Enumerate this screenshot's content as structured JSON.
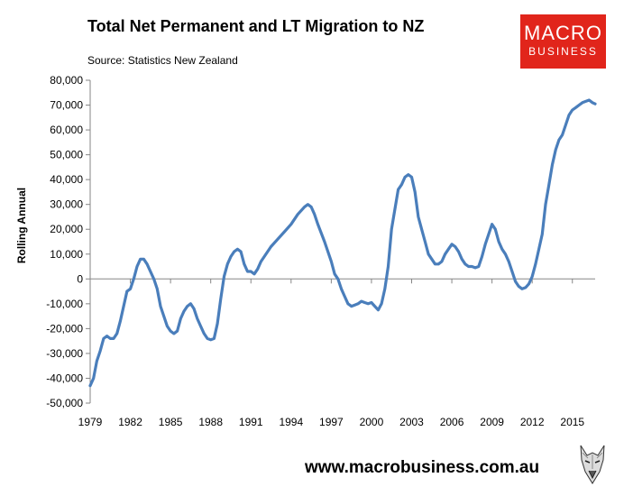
{
  "title": "Total Net Permanent and LT Migration to NZ",
  "source": "Source: Statistics New Zealand",
  "logo": {
    "line1": "MACRO",
    "line2": "BUSINESS",
    "color": "#e1251b"
  },
  "website": "www.macrobusiness.com.au",
  "wolf_icon": "wolf-logo-icon",
  "chart_data": {
    "type": "line",
    "title": "Total Net Permanent and LT Migration to NZ",
    "xlabel": "",
    "ylabel": "Rolling Annual",
    "xlim": [
      1979,
      2016.7
    ],
    "ylim": [
      -50000,
      80000
    ],
    "x_ticks": [
      1979,
      1982,
      1985,
      1988,
      1991,
      1994,
      1997,
      2000,
      2003,
      2006,
      2009,
      2012,
      2015
    ],
    "x_tick_labels": [
      "1979",
      "1982",
      "1985",
      "1988",
      "1991",
      "1994",
      "1997",
      "2000",
      "2003",
      "2006",
      "2009",
      "2012",
      "2015"
    ],
    "y_ticks": [
      -50000,
      -40000,
      -30000,
      -20000,
      -10000,
      0,
      10000,
      20000,
      30000,
      40000,
      50000,
      60000,
      70000,
      80000
    ],
    "y_tick_labels": [
      "-50,000",
      "-40,000",
      "-30,000",
      "-20,000",
      "-10,000",
      "0",
      "10,000",
      "20,000",
      "30,000",
      "40,000",
      "50,000",
      "60,000",
      "70,000",
      "80,000"
    ],
    "grid": false,
    "series": [
      {
        "name": "Rolling Annual",
        "color": "#4a7ebb",
        "x": [
          1979.0,
          1979.25,
          1979.5,
          1979.75,
          1980.0,
          1980.25,
          1980.5,
          1980.75,
          1981.0,
          1981.25,
          1981.5,
          1981.75,
          1982.0,
          1982.25,
          1982.5,
          1982.75,
          1983.0,
          1983.25,
          1983.5,
          1983.75,
          1984.0,
          1984.25,
          1984.5,
          1984.75,
          1985.0,
          1985.25,
          1985.5,
          1985.75,
          1986.0,
          1986.25,
          1986.5,
          1986.75,
          1987.0,
          1987.25,
          1987.5,
          1987.75,
          1988.0,
          1988.25,
          1988.5,
          1988.75,
          1989.0,
          1989.25,
          1989.5,
          1989.75,
          1990.0,
          1990.25,
          1990.5,
          1990.75,
          1991.0,
          1991.25,
          1991.5,
          1991.75,
          1992.0,
          1992.5,
          1993.0,
          1993.5,
          1994.0,
          1994.5,
          1995.0,
          1995.25,
          1995.5,
          1995.75,
          1996.0,
          1996.5,
          1997.0,
          1997.25,
          1997.5,
          1997.75,
          1998.0,
          1998.25,
          1998.5,
          1998.75,
          1999.0,
          1999.25,
          1999.5,
          1999.75,
          2000.0,
          2000.25,
          2000.5,
          2000.75,
          2001.0,
          2001.25,
          2001.5,
          2001.75,
          2002.0,
          2002.25,
          2002.5,
          2002.75,
          2003.0,
          2003.25,
          2003.5,
          2003.75,
          2004.0,
          2004.25,
          2004.5,
          2004.75,
          2005.0,
          2005.25,
          2005.5,
          2005.75,
          2006.0,
          2006.25,
          2006.5,
          2006.75,
          2007.0,
          2007.25,
          2007.5,
          2007.75,
          2008.0,
          2008.25,
          2008.5,
          2008.75,
          2009.0,
          2009.25,
          2009.5,
          2009.75,
          2010.0,
          2010.25,
          2010.5,
          2010.75,
          2011.0,
          2011.25,
          2011.5,
          2011.75,
          2012.0,
          2012.25,
          2012.5,
          2012.75,
          2013.0,
          2013.25,
          2013.5,
          2013.75,
          2014.0,
          2014.25,
          2014.5,
          2014.75,
          2015.0,
          2015.25,
          2015.5,
          2015.75,
          2016.0,
          2016.25,
          2016.5,
          2016.7
        ],
        "values": [
          -43000,
          -40000,
          -33000,
          -29000,
          -24000,
          -23000,
          -24000,
          -24000,
          -22000,
          -17000,
          -11000,
          -5000,
          -4000,
          0,
          5000,
          8000,
          8000,
          6000,
          3000,
          0,
          -4000,
          -11000,
          -15000,
          -19000,
          -21000,
          -22000,
          -21000,
          -16000,
          -13000,
          -11000,
          -10000,
          -12000,
          -16000,
          -19000,
          -22000,
          -24000,
          -24500,
          -24000,
          -18000,
          -8000,
          1000,
          6000,
          9000,
          11000,
          12000,
          11000,
          6000,
          3000,
          3000,
          2000,
          4000,
          7000,
          9000,
          13000,
          16000,
          19000,
          22000,
          26000,
          29000,
          30000,
          29000,
          26000,
          22000,
          15000,
          7000,
          2000,
          0,
          -4000,
          -7000,
          -10000,
          -11000,
          -10500,
          -10000,
          -9000,
          -9500,
          -10000,
          -9500,
          -11000,
          -12500,
          -10000,
          -4000,
          5000,
          20000,
          28000,
          36000,
          38000,
          41000,
          42000,
          41000,
          35000,
          25000,
          20000,
          15000,
          10000,
          8000,
          6000,
          6000,
          7000,
          10000,
          12000,
          14000,
          13000,
          11000,
          8000,
          6000,
          5000,
          5000,
          4500,
          5000,
          9000,
          14000,
          18000,
          22000,
          20000,
          15000,
          12000,
          10000,
          7000,
          3000,
          -1000,
          -3000,
          -4000,
          -3500,
          -2000,
          1000,
          6000,
          12000,
          18000,
          30000,
          38000,
          46000,
          52000,
          56000,
          58000,
          62000,
          66000,
          68000,
          69000,
          70000,
          71000,
          71500,
          72000,
          71000,
          70500
        ]
      }
    ]
  }
}
